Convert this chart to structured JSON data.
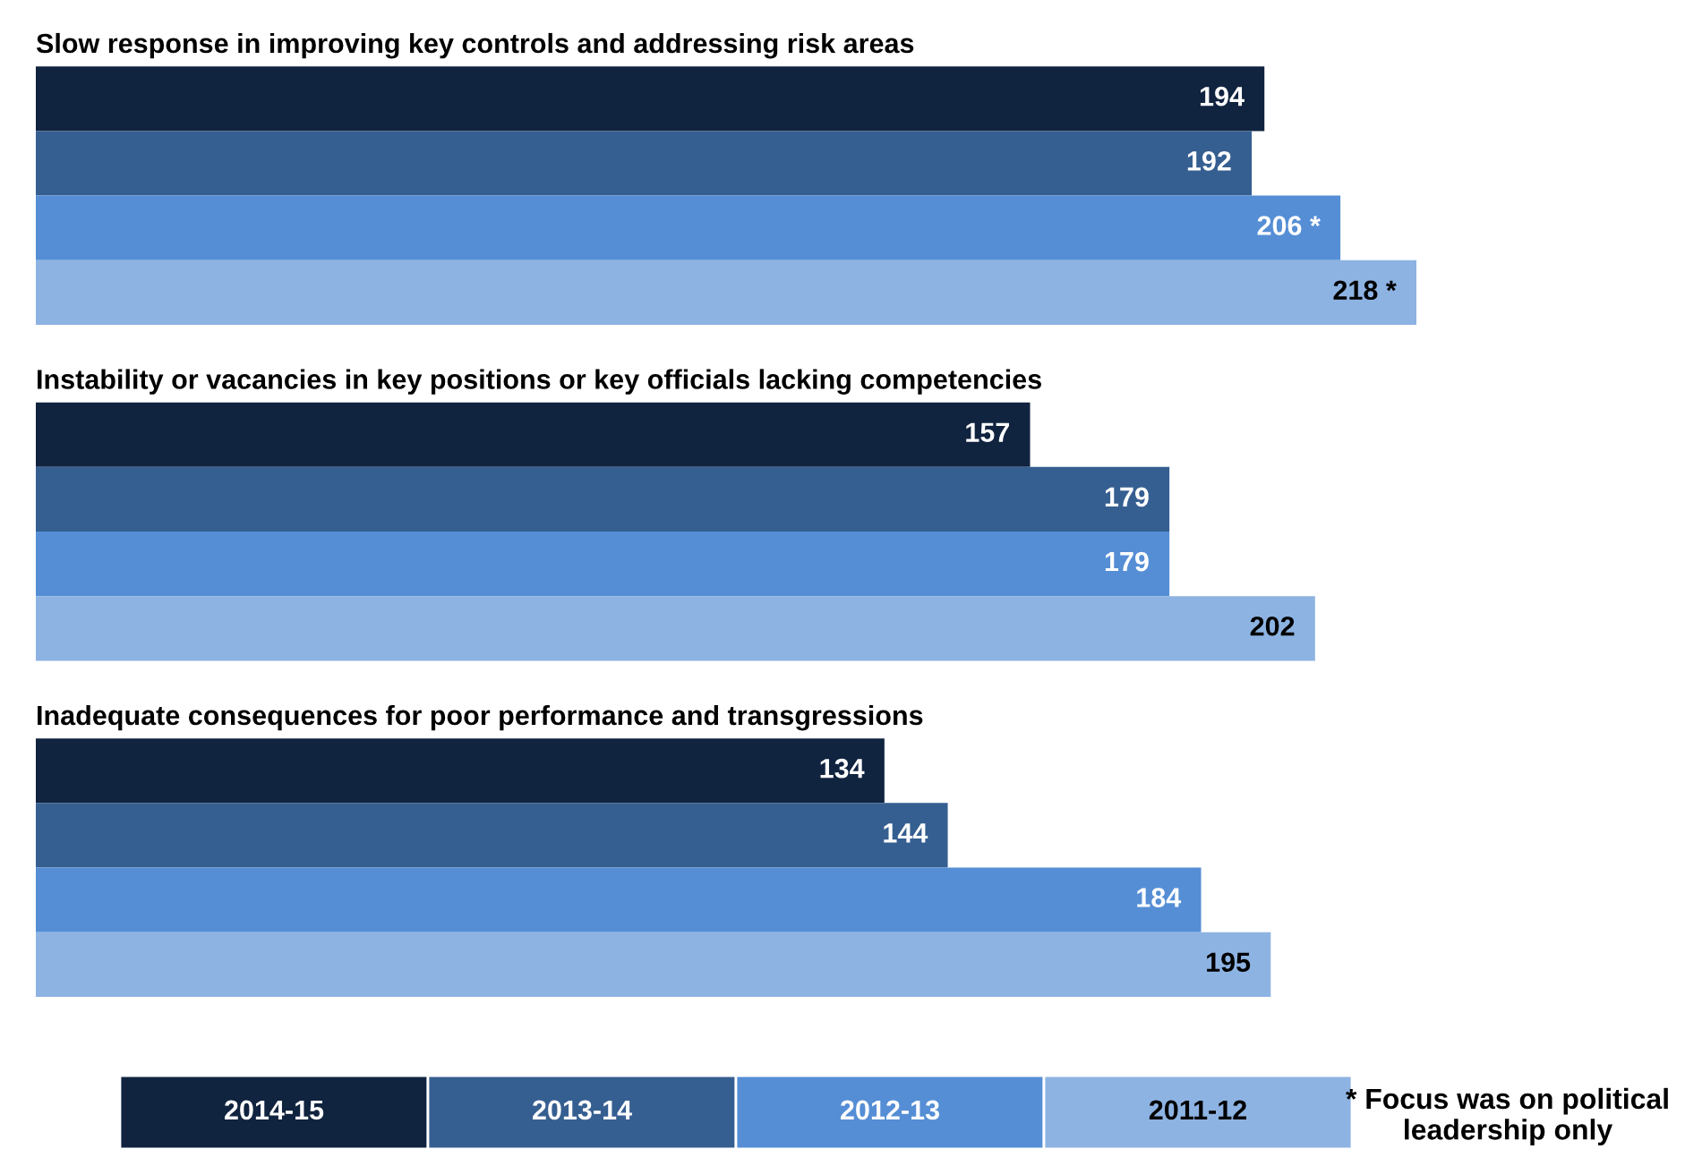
{
  "chart_data": {
    "type": "bar",
    "orientation": "horizontal",
    "categories": [
      "Slow response in improving key controls and addressing risk areas",
      "Instability or vacancies in key positions or key officials lacking competencies",
      "Inadequate consequences for poor performance and transgressions"
    ],
    "series": [
      {
        "name": "2014-15",
        "color": "#10233f",
        "values": [
          194,
          157,
          134
        ],
        "value_labels": [
          "194",
          "157",
          "134"
        ]
      },
      {
        "name": "2013-14",
        "color": "#365f91",
        "values": [
          192,
          179,
          144
        ],
        "value_labels": [
          "192",
          "179",
          "144"
        ]
      },
      {
        "name": "2012-13",
        "color": "#558ed5",
        "values": [
          206,
          179,
          184
        ],
        "value_labels": [
          "206 *",
          "179",
          "184"
        ]
      },
      {
        "name": "2011-12",
        "color": "#8db3e2",
        "values": [
          218,
          202,
          195
        ],
        "value_labels": [
          "218 *",
          "202",
          "195"
        ]
      }
    ],
    "legend": "bottom",
    "annotations": [
      "* Focus was on political leadership only"
    ]
  }
}
